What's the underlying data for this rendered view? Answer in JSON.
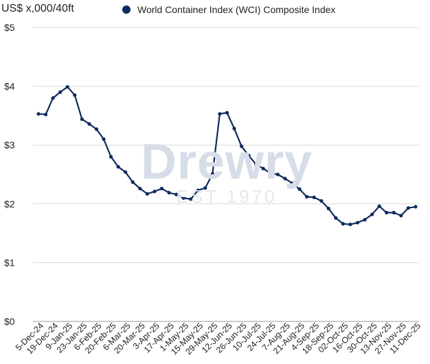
{
  "header": {
    "unit_label": "US$ x,000/40ft",
    "legend_label": "World Container Index (WCI) Composite Index"
  },
  "watermark": {
    "brand": "Drewry",
    "sub": "EST 1970"
  },
  "colors": {
    "series": "#0f2a5c",
    "grid": "#d9d9d9",
    "axis": "#999999"
  },
  "chart_data": {
    "type": "line",
    "title": "",
    "ylabel": "US$ x,000/40ft",
    "xlabel": "",
    "ylim": [
      0,
      5
    ],
    "grid": true,
    "legend": "top",
    "y_ticks": [
      {
        "value": 0,
        "label": "$0"
      },
      {
        "value": 1,
        "label": "$1"
      },
      {
        "value": 2,
        "label": "$2"
      },
      {
        "value": 3,
        "label": "$3"
      },
      {
        "value": 4,
        "label": "$4"
      },
      {
        "value": 5,
        "label": "$5"
      }
    ],
    "x_tick_labels": [
      "5-Dec-24",
      "19-Dec-24",
      "9-Jan-25",
      "23-Jan-25",
      "6-Feb-25",
      "20-Feb-25",
      "6-Mar-25",
      "20-Mar-25",
      "3-Apr-25",
      "17-Apr-25",
      "1-May-25",
      "15-May-25",
      "29-May-25",
      "12-Jun-25",
      "26-Jun-25",
      "10-Jul-25",
      "24-Jul-25",
      "7-Aug-25",
      "21-Aug-25",
      "4-Sep-25",
      "18-Sep-25",
      "02-Oct-25",
      "16-Oct-25",
      "30-Oct-25",
      "13-Nov-25",
      "27-Nov-25",
      "11-Dec-25"
    ],
    "series": [
      {
        "name": "World Container Index (WCI) Composite Index",
        "values": [
          3.53,
          3.52,
          3.8,
          3.9,
          3.99,
          3.85,
          3.44,
          3.36,
          3.27,
          3.1,
          2.8,
          2.63,
          2.54,
          2.37,
          2.26,
          2.17,
          2.21,
          2.26,
          2.19,
          2.16,
          2.1,
          2.08,
          2.23,
          2.27,
          2.51,
          3.53,
          3.55,
          3.28,
          2.98,
          2.82,
          2.67,
          2.6,
          2.52,
          2.5,
          2.43,
          2.35,
          2.25,
          2.12,
          2.11,
          2.05,
          1.92,
          1.76,
          1.66,
          1.65,
          1.68,
          1.73,
          1.82,
          1.96,
          1.85,
          1.85,
          1.8,
          1.93,
          1.95
        ]
      }
    ]
  }
}
